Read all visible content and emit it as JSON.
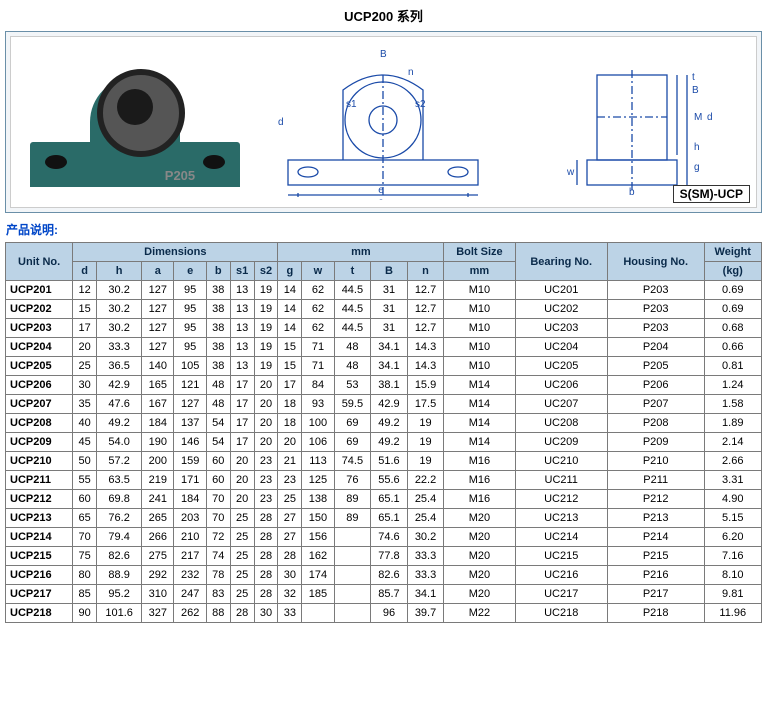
{
  "title": "UCP200 系列",
  "diagram_label": "S(SM)-UCP",
  "photo_tag": "P205",
  "desc_label": "产品说明:",
  "headers": {
    "unit": "Unit No.",
    "dim_group": "Dimensions",
    "dim_unit": "mm",
    "dim_cols": [
      "d",
      "h",
      "a",
      "e",
      "b",
      "s1",
      "s2",
      "g",
      "w",
      "t",
      "B",
      "n"
    ],
    "bolt": "Bolt Size",
    "bolt_unit": "mm",
    "bearing": "Bearing No.",
    "housing": "Housing No.",
    "weight": "Weight",
    "weight_unit": "(kg)"
  },
  "rows": [
    {
      "u": "UCP201",
      "d": "12",
      "h": "30.2",
      "a": "127",
      "e": "95",
      "b": "38",
      "s1": "13",
      "s2": "19",
      "g": "14",
      "w": "62",
      "t": "44.5",
      "B": "31",
      "n": "12.7",
      "bolt": "M10",
      "bear": "UC201",
      "hous": "P203",
      "wt": "0.69"
    },
    {
      "u": "UCP202",
      "d": "15",
      "h": "30.2",
      "a": "127",
      "e": "95",
      "b": "38",
      "s1": "13",
      "s2": "19",
      "g": "14",
      "w": "62",
      "t": "44.5",
      "B": "31",
      "n": "12.7",
      "bolt": "M10",
      "bear": "UC202",
      "hous": "P203",
      "wt": "0.69"
    },
    {
      "u": "UCP203",
      "d": "17",
      "h": "30.2",
      "a": "127",
      "e": "95",
      "b": "38",
      "s1": "13",
      "s2": "19",
      "g": "14",
      "w": "62",
      "t": "44.5",
      "B": "31",
      "n": "12.7",
      "bolt": "M10",
      "bear": "UC203",
      "hous": "P203",
      "wt": "0.68"
    },
    {
      "u": "UCP204",
      "d": "20",
      "h": "33.3",
      "a": "127",
      "e": "95",
      "b": "38",
      "s1": "13",
      "s2": "19",
      "g": "15",
      "w": "71",
      "t": "48",
      "B": "34.1",
      "n": "14.3",
      "bolt": "M10",
      "bear": "UC204",
      "hous": "P204",
      "wt": "0.66"
    },
    {
      "u": "UCP205",
      "d": "25",
      "h": "36.5",
      "a": "140",
      "e": "105",
      "b": "38",
      "s1": "13",
      "s2": "19",
      "g": "15",
      "w": "71",
      "t": "48",
      "B": "34.1",
      "n": "14.3",
      "bolt": "M10",
      "bear": "UC205",
      "hous": "P205",
      "wt": "0.81"
    },
    {
      "u": "UCP206",
      "d": "30",
      "h": "42.9",
      "a": "165",
      "e": "121",
      "b": "48",
      "s1": "17",
      "s2": "20",
      "g": "17",
      "w": "84",
      "t": "53",
      "B": "38.1",
      "n": "15.9",
      "bolt": "M14",
      "bear": "UC206",
      "hous": "P206",
      "wt": "1.24"
    },
    {
      "u": "UCP207",
      "d": "35",
      "h": "47.6",
      "a": "167",
      "e": "127",
      "b": "48",
      "s1": "17",
      "s2": "20",
      "g": "18",
      "w": "93",
      "t": "59.5",
      "B": "42.9",
      "n": "17.5",
      "bolt": "M14",
      "bear": "UC207",
      "hous": "P207",
      "wt": "1.58"
    },
    {
      "u": "UCP208",
      "d": "40",
      "h": "49.2",
      "a": "184",
      "e": "137",
      "b": "54",
      "s1": "17",
      "s2": "20",
      "g": "18",
      "w": "100",
      "t": "69",
      "B": "49.2",
      "n": "19",
      "bolt": "M14",
      "bear": "UC208",
      "hous": "P208",
      "wt": "1.89"
    },
    {
      "u": "UCP209",
      "d": "45",
      "h": "54.0",
      "a": "190",
      "e": "146",
      "b": "54",
      "s1": "17",
      "s2": "20",
      "g": "20",
      "w": "106",
      "t": "69",
      "B": "49.2",
      "n": "19",
      "bolt": "M14",
      "bear": "UC209",
      "hous": "P209",
      "wt": "2.14"
    },
    {
      "u": "UCP210",
      "d": "50",
      "h": "57.2",
      "a": "200",
      "e": "159",
      "b": "60",
      "s1": "20",
      "s2": "23",
      "g": "21",
      "w": "113",
      "t": "74.5",
      "B": "51.6",
      "n": "19",
      "bolt": "M16",
      "bear": "UC210",
      "hous": "P210",
      "wt": "2.66"
    },
    {
      "u": "UCP211",
      "d": "55",
      "h": "63.5",
      "a": "219",
      "e": "171",
      "b": "60",
      "s1": "20",
      "s2": "23",
      "g": "23",
      "w": "125",
      "t": "76",
      "B": "55.6",
      "n": "22.2",
      "bolt": "M16",
      "bear": "UC211",
      "hous": "P211",
      "wt": "3.31"
    },
    {
      "u": "UCP212",
      "d": "60",
      "h": "69.8",
      "a": "241",
      "e": "184",
      "b": "70",
      "s1": "20",
      "s2": "23",
      "g": "25",
      "w": "138",
      "t": "89",
      "B": "65.1",
      "n": "25.4",
      "bolt": "M16",
      "bear": "UC212",
      "hous": "P212",
      "wt": "4.90"
    },
    {
      "u": "UCP213",
      "d": "65",
      "h": "76.2",
      "a": "265",
      "e": "203",
      "b": "70",
      "s1": "25",
      "s2": "28",
      "g": "27",
      "w": "150",
      "t": "89",
      "B": "65.1",
      "n": "25.4",
      "bolt": "M20",
      "bear": "UC213",
      "hous": "P213",
      "wt": "5.15"
    },
    {
      "u": "UCP214",
      "d": "70",
      "h": "79.4",
      "a": "266",
      "e": "210",
      "b": "72",
      "s1": "25",
      "s2": "28",
      "g": "27",
      "w": "156",
      "t": "",
      "B": "74.6",
      "n": "30.2",
      "bolt": "M20",
      "bear": "UC214",
      "hous": "P214",
      "wt": "6.20"
    },
    {
      "u": "UCP215",
      "d": "75",
      "h": "82.6",
      "a": "275",
      "e": "217",
      "b": "74",
      "s1": "25",
      "s2": "28",
      "g": "28",
      "w": "162",
      "t": "",
      "B": "77.8",
      "n": "33.3",
      "bolt": "M20",
      "bear": "UC215",
      "hous": "P215",
      "wt": "7.16"
    },
    {
      "u": "UCP216",
      "d": "80",
      "h": "88.9",
      "a": "292",
      "e": "232",
      "b": "78",
      "s1": "25",
      "s2": "28",
      "g": "30",
      "w": "174",
      "t": "",
      "B": "82.6",
      "n": "33.3",
      "bolt": "M20",
      "bear": "UC216",
      "hous": "P216",
      "wt": "8.10"
    },
    {
      "u": "UCP217",
      "d": "85",
      "h": "95.2",
      "a": "310",
      "e": "247",
      "b": "83",
      "s1": "25",
      "s2": "28",
      "g": "32",
      "w": "185",
      "t": "",
      "B": "85.7",
      "n": "34.1",
      "bolt": "M20",
      "bear": "UC217",
      "hous": "P217",
      "wt": "9.81"
    },
    {
      "u": "UCP218",
      "d": "90",
      "h": "101.6",
      "a": "327",
      "e": "262",
      "b": "88",
      "s1": "28",
      "s2": "30",
      "g": "33",
      "w": "",
      "t": "",
      "B": "96",
      "n": "39.7",
      "bolt": "M22",
      "bear": "UC218",
      "hous": "P218",
      "wt": "11.96"
    }
  ]
}
